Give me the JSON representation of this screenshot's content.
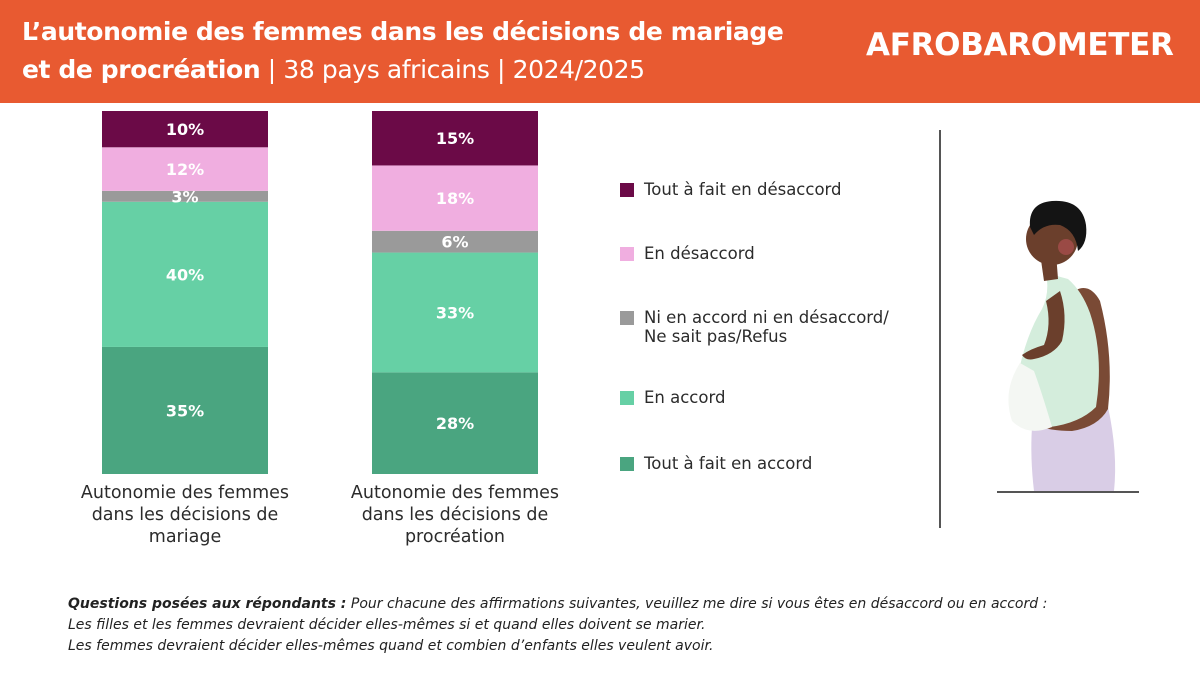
{
  "header": {
    "title_bold_line1": "L’autonomie des femmes dans les décisions de mariage",
    "title_bold_line2": "et de procréation",
    "title_rest_line2": " | 38 pays africains | 2024/2025",
    "logo": "AFROBAROMETER"
  },
  "colors": {
    "header_bg": "#e85a31",
    "tout_a_fait_en_desaccord": "#6b0a47",
    "en_desaccord": "#f0aee0",
    "neutre": "#9a9a9a",
    "en_accord": "#66d0a5",
    "tout_a_fait_en_accord": "#4aa580"
  },
  "chart_data": {
    "type": "bar",
    "stacked": true,
    "normalized_to_100": true,
    "title": "",
    "xlabel": "",
    "ylabel": "",
    "ylim": [
      0,
      100
    ],
    "grid": false,
    "legend_position": "right",
    "categories": [
      "Autonomie des femmes dans les décisions de mariage",
      "Autonomie des femmes dans les décisions de procréation"
    ],
    "category_label_lines": [
      [
        "Autonomie des femmes",
        "dans les décisions de",
        "mariage"
      ],
      [
        "Autonomie des femmes",
        "dans les décisions de",
        "procréation"
      ]
    ],
    "series": [
      {
        "name": "Tout à fait en accord",
        "color": "#4aa580",
        "values": [
          35,
          28
        ],
        "labels": [
          "35%",
          "28%"
        ]
      },
      {
        "name": "En accord",
        "color": "#66d0a5",
        "values": [
          40,
          33
        ],
        "labels": [
          "40%",
          "33%"
        ]
      },
      {
        "name": "Ni en accord ni en désaccord/\nNe sait pas/Refus",
        "color": "#9a9a9a",
        "values": [
          3,
          6
        ],
        "labels": [
          "3%",
          "6%"
        ]
      },
      {
        "name": "En désaccord",
        "color": "#f0aee0",
        "values": [
          12,
          18
        ],
        "labels": [
          "12%",
          "18%"
        ]
      },
      {
        "name": "Tout à fait en désaccord",
        "color": "#6b0a47",
        "values": [
          10,
          15
        ],
        "labels": [
          "10%",
          "15%"
        ]
      }
    ]
  },
  "legend": [
    {
      "label": "Tout à fait en désaccord",
      "color": "#6b0a47"
    },
    {
      "label": "En désaccord",
      "color": "#f0aee0"
    },
    {
      "label": "Ni en accord ni en désaccord/\nNe sait pas/Refus",
      "color": "#9a9a9a"
    },
    {
      "label": "En accord",
      "color": "#66d0a5"
    },
    {
      "label": "Tout à fait en accord",
      "color": "#4aa580"
    }
  ],
  "questions": {
    "lead": "Questions posées aux répondants :",
    "intro": " Pour chacune des affirmations suivantes, veuillez me dire si vous êtes en désaccord ou en accord :",
    "q1": "Les filles et les femmes devraient décider elles-mêmes si et quand elles doivent se marier.",
    "q2": "Les femmes devraient décider elles-mêmes quand et combien d’enfants elles veulent avoir."
  }
}
